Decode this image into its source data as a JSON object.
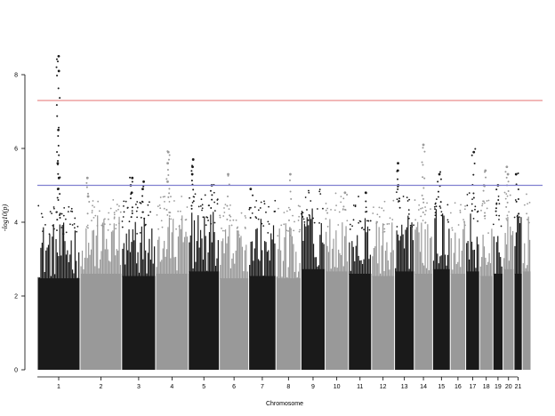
{
  "chart_data": {
    "type": "scatter",
    "subtype": "manhattan",
    "title": "",
    "xlabel": "Chromosome",
    "ylabel": "-log10(p)",
    "ylim": [
      0,
      9
    ],
    "yticks": [
      0,
      2,
      4,
      6,
      8
    ],
    "grid": false,
    "legend": "none",
    "chromosomes": [
      {
        "label": "1",
        "start": 0,
        "end": 249,
        "color": "#1a1a1a",
        "baseline": 4.0,
        "peaks": [
          {
            "pos": 0.5,
            "values": [
              8.5,
              8.1,
              6.5,
              5.6,
              5.2,
              4.9
            ]
          }
        ]
      },
      {
        "label": "2",
        "start": 249,
        "end": 492,
        "color": "#999999",
        "baseline": 4.2,
        "peaks": [
          {
            "pos": 0.2,
            "values": [
              5.2,
              4.7
            ]
          }
        ]
      },
      {
        "label": "3",
        "start": 492,
        "end": 690,
        "color": "#1a1a1a",
        "baseline": 4.1,
        "peaks": [
          {
            "pos": 0.3,
            "values": [
              5.2,
              5.0,
              4.8
            ]
          },
          {
            "pos": 0.65,
            "values": [
              5.1,
              4.9
            ]
          }
        ]
      },
      {
        "label": "4",
        "start": 690,
        "end": 881,
        "color": "#999999",
        "baseline": 4.2,
        "peaks": [
          {
            "pos": 0.4,
            "values": [
              5.9,
              5.6,
              5.1
            ]
          }
        ]
      },
      {
        "label": "5",
        "start": 881,
        "end": 1062,
        "color": "#1a1a1a",
        "baseline": 4.3,
        "peaks": [
          {
            "pos": 0.15,
            "values": [
              5.7,
              5.5,
              5.3
            ]
          },
          {
            "pos": 0.8,
            "values": [
              5.0
            ]
          }
        ]
      },
      {
        "label": "6",
        "start": 1062,
        "end": 1233,
        "color": "#999999",
        "baseline": 4.0,
        "peaks": [
          {
            "pos": 0.3,
            "values": [
              5.3
            ]
          }
        ]
      },
      {
        "label": "7",
        "start": 1233,
        "end": 1392,
        "color": "#1a1a1a",
        "baseline": 4.1,
        "peaks": [
          {
            "pos": 0.1,
            "values": [
              4.9
            ]
          }
        ]
      },
      {
        "label": "8",
        "start": 1392,
        "end": 1538,
        "color": "#999999",
        "baseline": 4.0,
        "peaks": [
          {
            "pos": 0.6,
            "values": [
              5.3
            ]
          }
        ]
      },
      {
        "label": "9",
        "start": 1538,
        "end": 1679,
        "color": "#1a1a1a",
        "baseline": 4.4,
        "peaks": []
      },
      {
        "label": "10",
        "start": 1679,
        "end": 1815,
        "color": "#999999",
        "baseline": 4.3,
        "peaks": [
          {
            "pos": 0.9,
            "values": [
              4.8
            ]
          }
        ]
      },
      {
        "label": "11",
        "start": 1815,
        "end": 1950,
        "color": "#1a1a1a",
        "baseline": 4.2,
        "peaks": [
          {
            "pos": 0.8,
            "values": [
              4.8
            ]
          }
        ]
      },
      {
        "label": "12",
        "start": 1950,
        "end": 2084,
        "color": "#999999",
        "baseline": 4.1,
        "peaks": []
      },
      {
        "label": "13",
        "start": 2084,
        "end": 2199,
        "color": "#1a1a1a",
        "baseline": 4.3,
        "peaks": [
          {
            "pos": 0.2,
            "values": [
              5.6,
              5.4,
              5.0
            ]
          }
        ]
      },
      {
        "label": "14",
        "start": 2199,
        "end": 2306,
        "color": "#999999",
        "baseline": 4.2,
        "peaks": [
          {
            "pos": 0.5,
            "values": [
              6.1
            ]
          }
        ]
      },
      {
        "label": "15",
        "start": 2306,
        "end": 2409,
        "color": "#1a1a1a",
        "baseline": 4.4,
        "peaks": [
          {
            "pos": 0.4,
            "values": [
              5.3
            ]
          }
        ]
      },
      {
        "label": "16",
        "start": 2409,
        "end": 2499,
        "color": "#999999",
        "baseline": 4.2,
        "peaks": []
      },
      {
        "label": "17",
        "start": 2499,
        "end": 2580,
        "color": "#1a1a1a",
        "baseline": 4.3,
        "peaks": [
          {
            "pos": 0.6,
            "values": [
              5.9
            ]
          }
        ]
      },
      {
        "label": "18",
        "start": 2580,
        "end": 2658,
        "color": "#999999",
        "baseline": 4.1,
        "peaks": [
          {
            "pos": 0.4,
            "values": [
              5.4,
              5.0
            ]
          }
        ]
      },
      {
        "label": "19",
        "start": 2658,
        "end": 2717,
        "color": "#1a1a1a",
        "baseline": 4.2,
        "peaks": [
          {
            "pos": 0.5,
            "values": [
              5.0
            ]
          }
        ]
      },
      {
        "label": "20",
        "start": 2717,
        "end": 2781,
        "color": "#999999",
        "baseline": 4.4,
        "peaks": [
          {
            "pos": 0.4,
            "values": [
              5.5,
              5.3
            ]
          }
        ]
      },
      {
        "label": "21",
        "start": 2781,
        "end": 2829,
        "color": "#1a1a1a",
        "baseline": 4.2,
        "peaks": [
          {
            "pos": 0.4,
            "values": [
              5.3
            ]
          }
        ]
      },
      {
        "label": "",
        "start": 2829,
        "end": 2880,
        "color": "#999999",
        "baseline": 4.3,
        "peaks": []
      }
    ],
    "thresholds": [
      {
        "value": 7.3,
        "color": "#e88080"
      },
      {
        "value": 5.0,
        "color": "#8080d0"
      }
    ]
  }
}
